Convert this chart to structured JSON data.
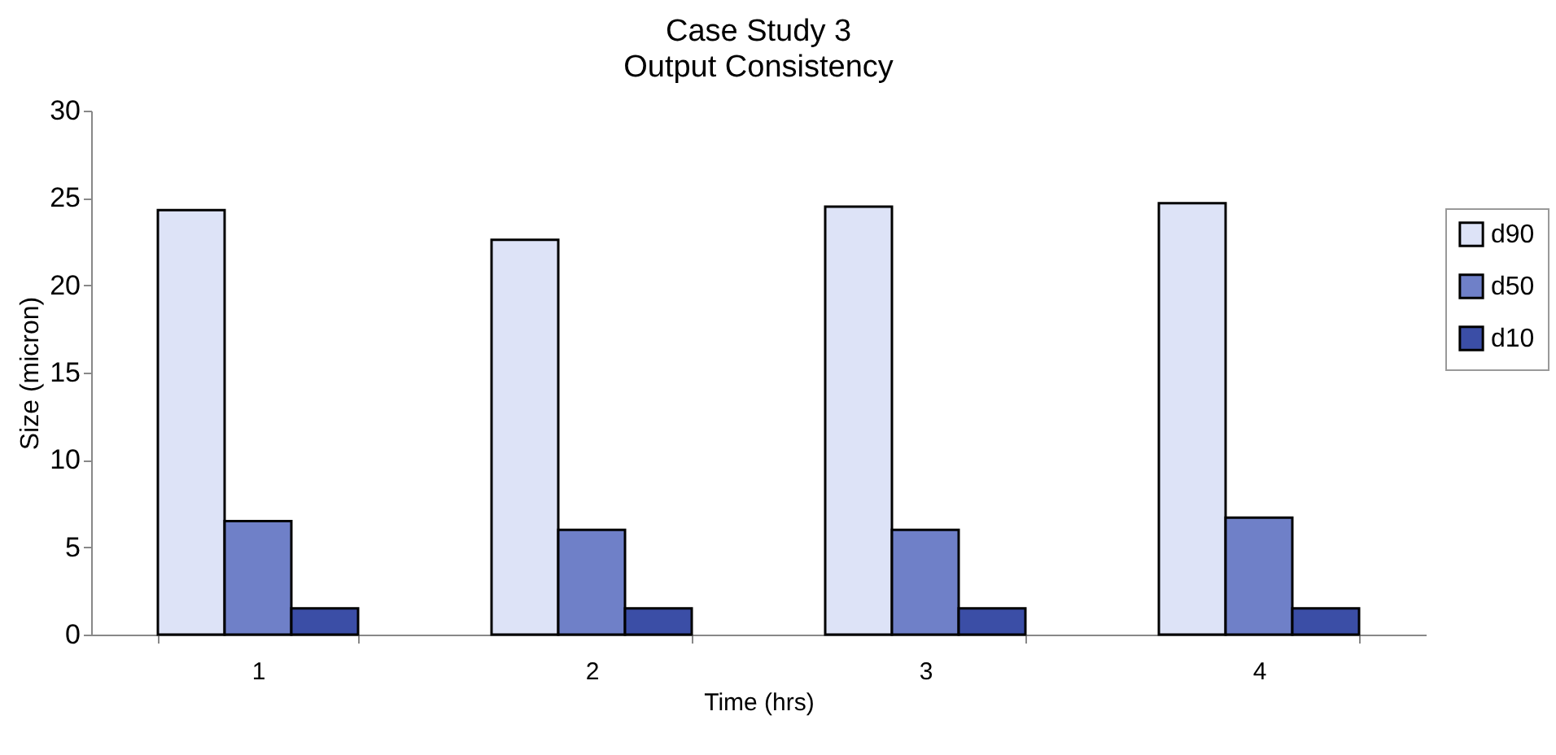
{
  "chart_data": {
    "type": "bar",
    "title": "Case Study 3",
    "subtitle": "Output Consistency",
    "xlabel": "Time (hrs)",
    "ylabel": "Size (micron)",
    "categories": [
      "1",
      "2",
      "3",
      "4"
    ],
    "series": [
      {
        "name": "d90",
        "color": "#dde3f7",
        "values": [
          24.3,
          22.6,
          24.5,
          24.7
        ]
      },
      {
        "name": "d50",
        "color": "#6f80c8",
        "values": [
          6.5,
          6.0,
          6.0,
          6.7
        ]
      },
      {
        "name": "d10",
        "color": "#3b4ea6",
        "values": [
          1.5,
          1.5,
          1.5,
          1.5
        ]
      }
    ],
    "ylim": [
      0,
      30
    ],
    "yticks": [
      0,
      5,
      10,
      15,
      20,
      25,
      30
    ],
    "grid": false,
    "legend": "top right"
  }
}
